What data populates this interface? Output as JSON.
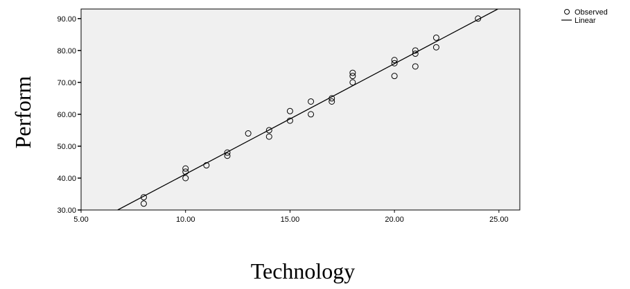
{
  "chart_data": {
    "type": "scatter",
    "title": "",
    "xlabel": "Technology",
    "ylabel": "Perform",
    "xlim": [
      5,
      26
    ],
    "ylim": [
      30,
      93
    ],
    "x_ticks": [
      "5.00",
      "10.00",
      "15.00",
      "20.00",
      "25.00"
    ],
    "x_tick_values": [
      5,
      10,
      15,
      20,
      25
    ],
    "y_ticks": [
      "30.00",
      "40.00",
      "50.00",
      "60.00",
      "70.00",
      "80.00",
      "90.00"
    ],
    "y_tick_values": [
      30,
      40,
      50,
      60,
      70,
      80,
      90
    ],
    "grid": false,
    "legend_position": "top-right",
    "plot_background": "#f0f0f0",
    "series": [
      {
        "name": "Observed",
        "type": "scatter",
        "marker": "open-circle",
        "points": [
          [
            8,
            34
          ],
          [
            8,
            32
          ],
          [
            10,
            43
          ],
          [
            10,
            42
          ],
          [
            10,
            40
          ],
          [
            11,
            44
          ],
          [
            12,
            48
          ],
          [
            12,
            47
          ],
          [
            13,
            54
          ],
          [
            14,
            55
          ],
          [
            14,
            53
          ],
          [
            15,
            61
          ],
          [
            15,
            58
          ],
          [
            16,
            64
          ],
          [
            16,
            60
          ],
          [
            17,
            65
          ],
          [
            17,
            64
          ],
          [
            18,
            73
          ],
          [
            18,
            72
          ],
          [
            18,
            70
          ],
          [
            20,
            77
          ],
          [
            20,
            76
          ],
          [
            20,
            72
          ],
          [
            21,
            80
          ],
          [
            21,
            79
          ],
          [
            21,
            75
          ],
          [
            22,
            84
          ],
          [
            22,
            81
          ],
          [
            24,
            90
          ]
        ]
      },
      {
        "name": "Linear",
        "type": "line",
        "line": [
          [
            6.75,
            30
          ],
          [
            24.95,
            93
          ]
        ]
      }
    ]
  }
}
